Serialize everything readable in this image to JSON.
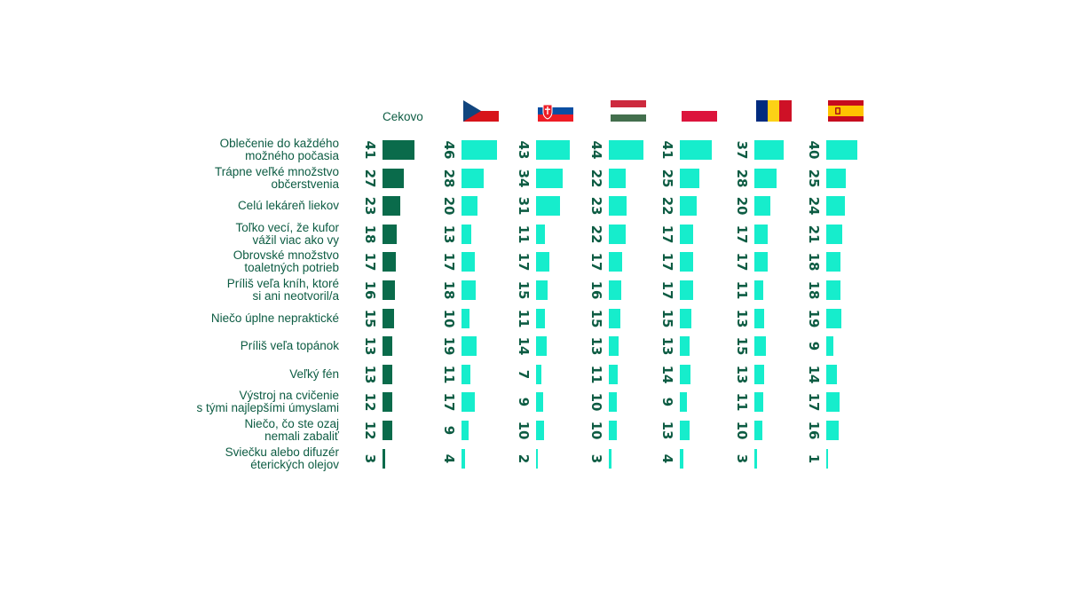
{
  "chart_data": {
    "type": "bar",
    "title": "",
    "xlabel": "",
    "ylabel": "",
    "categories": [
      [
        "Oblečenie do každého",
        "možného počasia"
      ],
      [
        "Trápne veľké množstvo",
        "občerstvenia"
      ],
      [
        "Celú lekáreň liekov"
      ],
      [
        "Toľko vecí, že kufor",
        "vážil viac ako vy"
      ],
      [
        "Obrovské množstvo",
        "toaletných potrieb"
      ],
      [
        "Príliš veľa kníh, ktoré",
        "si ani neotvoril/a"
      ],
      [
        "Niečo úplne nepraktické"
      ],
      [
        "Príliš veľa topánok"
      ],
      [
        "Veľký fén"
      ],
      [
        "Výstroj na cvičenie",
        "s tými najlepšími úmyslami"
      ],
      [
        "Niečo, čo ste ozaj",
        "nemali zabaliť"
      ],
      [
        "Sviečku alebo difuzér",
        "éterických olejov"
      ]
    ],
    "series": [
      {
        "name": "Cekovo",
        "flag": "",
        "color": "#0a6b4b",
        "values": [
          41,
          27,
          23,
          18,
          17,
          16,
          15,
          13,
          13,
          12,
          12,
          3
        ]
      },
      {
        "name": "",
        "flag": "czech-flag",
        "color": "#16edcc",
        "values": [
          46,
          28,
          20,
          13,
          17,
          18,
          10,
          19,
          11,
          17,
          9,
          4
        ]
      },
      {
        "name": "",
        "flag": "slovak-flag",
        "color": "#16edcc",
        "values": [
          43,
          34,
          31,
          11,
          17,
          15,
          11,
          14,
          7,
          9,
          10,
          2
        ]
      },
      {
        "name": "",
        "flag": "hungarian-flag",
        "color": "#16edcc",
        "values": [
          44,
          22,
          23,
          22,
          17,
          16,
          15,
          13,
          11,
          10,
          10,
          3
        ]
      },
      {
        "name": "",
        "flag": "polish-flag",
        "color": "#16edcc",
        "values": [
          41,
          25,
          22,
          17,
          17,
          17,
          15,
          13,
          14,
          9,
          13,
          4
        ]
      },
      {
        "name": "",
        "flag": "romanian-flag",
        "color": "#16edcc",
        "values": [
          37,
          28,
          20,
          17,
          17,
          11,
          13,
          15,
          13,
          11,
          10,
          3
        ]
      },
      {
        "name": "",
        "flag": "spanish-flag",
        "color": "#16edcc",
        "values": [
          40,
          25,
          24,
          21,
          18,
          18,
          19,
          9,
          14,
          17,
          16,
          1
        ]
      }
    ],
    "xlim": [
      0,
      50
    ],
    "grid": false,
    "legend": "none"
  }
}
